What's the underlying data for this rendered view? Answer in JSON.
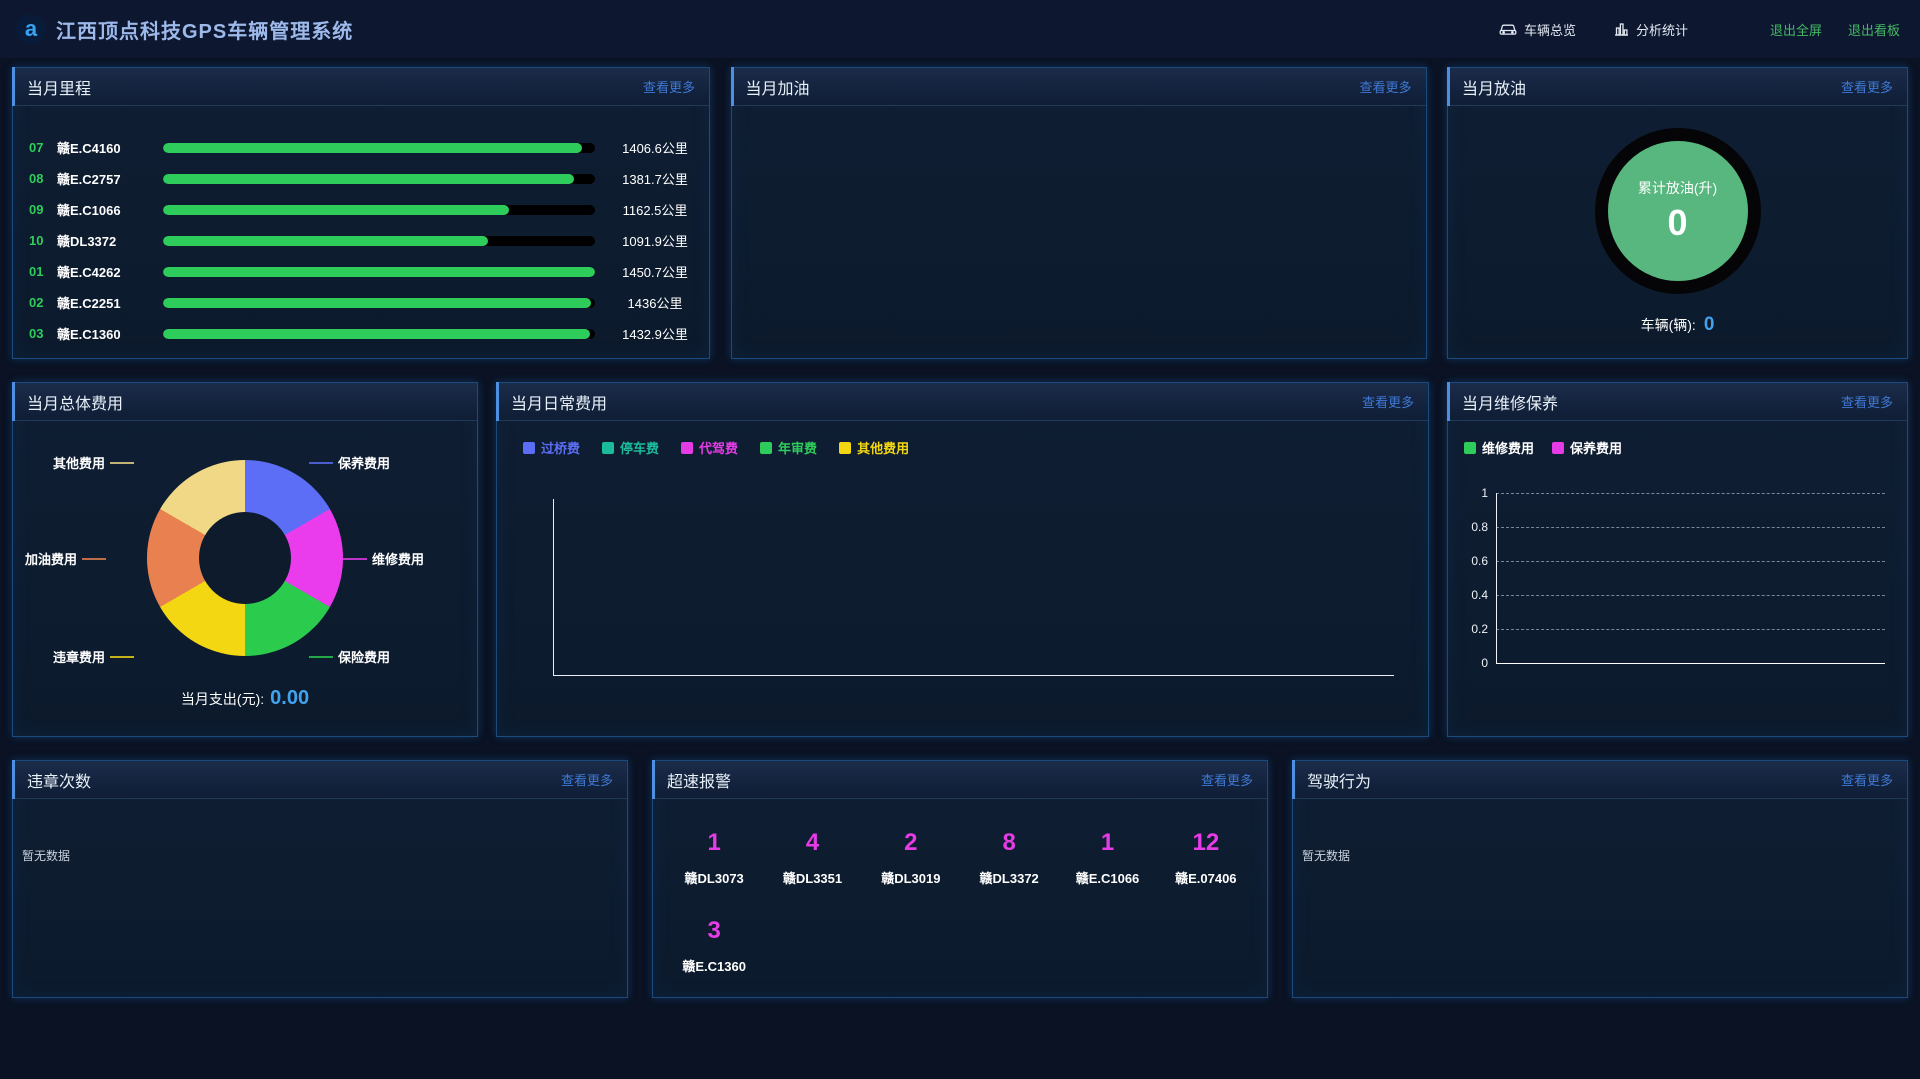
{
  "header": {
    "title": "江西顶点科技GPS车辆管理系统",
    "logo_letter": "a",
    "nav": [
      {
        "label": "车辆总览",
        "icon": "car-icon"
      },
      {
        "label": "分析统计",
        "icon": "bar-chart-icon"
      }
    ],
    "exit_fullscreen": "退出全屏",
    "exit_board": "退出看板"
  },
  "common": {
    "more_label": "查看更多",
    "empty_text": "暂无数据"
  },
  "colors": {
    "accent": "#4d8fe0",
    "link": "#3f78d4",
    "green": "#2ecc5a",
    "magenta": "#e53ce5",
    "value_blue": "#41a3ee",
    "exit_green": "#45b863"
  },
  "panels": {
    "mileage": {
      "title": "当月里程",
      "rows": [
        {
          "rank": "07",
          "plate": "赣E.C4160",
          "value": "1406.6公里",
          "pct": 97
        },
        {
          "rank": "08",
          "plate": "赣E.C2757",
          "value": "1381.7公里",
          "pct": 95.2
        },
        {
          "rank": "09",
          "plate": "赣E.C1066",
          "value": "1162.5公里",
          "pct": 80.1
        },
        {
          "rank": "10",
          "plate": "赣DL3372",
          "value": "1091.9公里",
          "pct": 75.3
        },
        {
          "rank": "01",
          "plate": "赣E.C4262",
          "value": "1450.7公里",
          "pct": 100
        },
        {
          "rank": "02",
          "plate": "赣E.C2251",
          "value": "1436公里",
          "pct": 99
        },
        {
          "rank": "03",
          "plate": "赣E.C1360",
          "value": "1432.9公里",
          "pct": 98.8
        }
      ]
    },
    "refuel": {
      "title": "当月加油"
    },
    "drain": {
      "title": "当月放油",
      "circle_label": "累计放油(升)",
      "circle_value": "0",
      "vehicles_label": "车辆(辆):",
      "vehicles_value": "0",
      "circle_color": "#57b77e"
    },
    "total_cost": {
      "title": "当月总体费用",
      "summary_label": "当月支出(元):",
      "summary_value": "0.00",
      "slices": [
        {
          "label": "保养费用",
          "color": "#5b6ef5"
        },
        {
          "label": "维修费用",
          "color": "#ea3cec"
        },
        {
          "label": "保险费用",
          "color": "#2bcb4e"
        },
        {
          "label": "违章费用",
          "color": "#f4d713"
        },
        {
          "label": "加油费用",
          "color": "#e8814f"
        },
        {
          "label": "其他费用",
          "color": "#f0d887"
        }
      ]
    },
    "daily_cost": {
      "title": "当月日常费用",
      "legend": [
        {
          "label": "过桥费",
          "color": "#5b6ef5"
        },
        {
          "label": "停车费",
          "color": "#1abc9c"
        },
        {
          "label": "代驾费",
          "color": "#e53ce5"
        },
        {
          "label": "年审费",
          "color": "#2ecc5a"
        },
        {
          "label": "其他费用",
          "color": "#f4d713"
        }
      ]
    },
    "maintenance": {
      "title": "当月维修保养",
      "legend": [
        {
          "label": "维修费用",
          "color": "#2ecc5a"
        },
        {
          "label": "保养费用",
          "color": "#e53ce5"
        }
      ],
      "y_ticks": [
        "1",
        "0.8",
        "0.6",
        "0.4",
        "0.2",
        "0"
      ]
    },
    "violations": {
      "title": "违章次数"
    },
    "speeding": {
      "title": "超速报警",
      "items": [
        {
          "count": "1",
          "plate": "赣DL3073"
        },
        {
          "count": "4",
          "plate": "赣DL3351"
        },
        {
          "count": "2",
          "plate": "赣DL3019"
        },
        {
          "count": "8",
          "plate": "赣DL3372"
        },
        {
          "count": "1",
          "plate": "赣E.C1066"
        },
        {
          "count": "12",
          "plate": "赣E.07406"
        },
        {
          "count": "3",
          "plate": "赣E.C1360"
        }
      ]
    },
    "driving": {
      "title": "驾驶行为"
    }
  }
}
